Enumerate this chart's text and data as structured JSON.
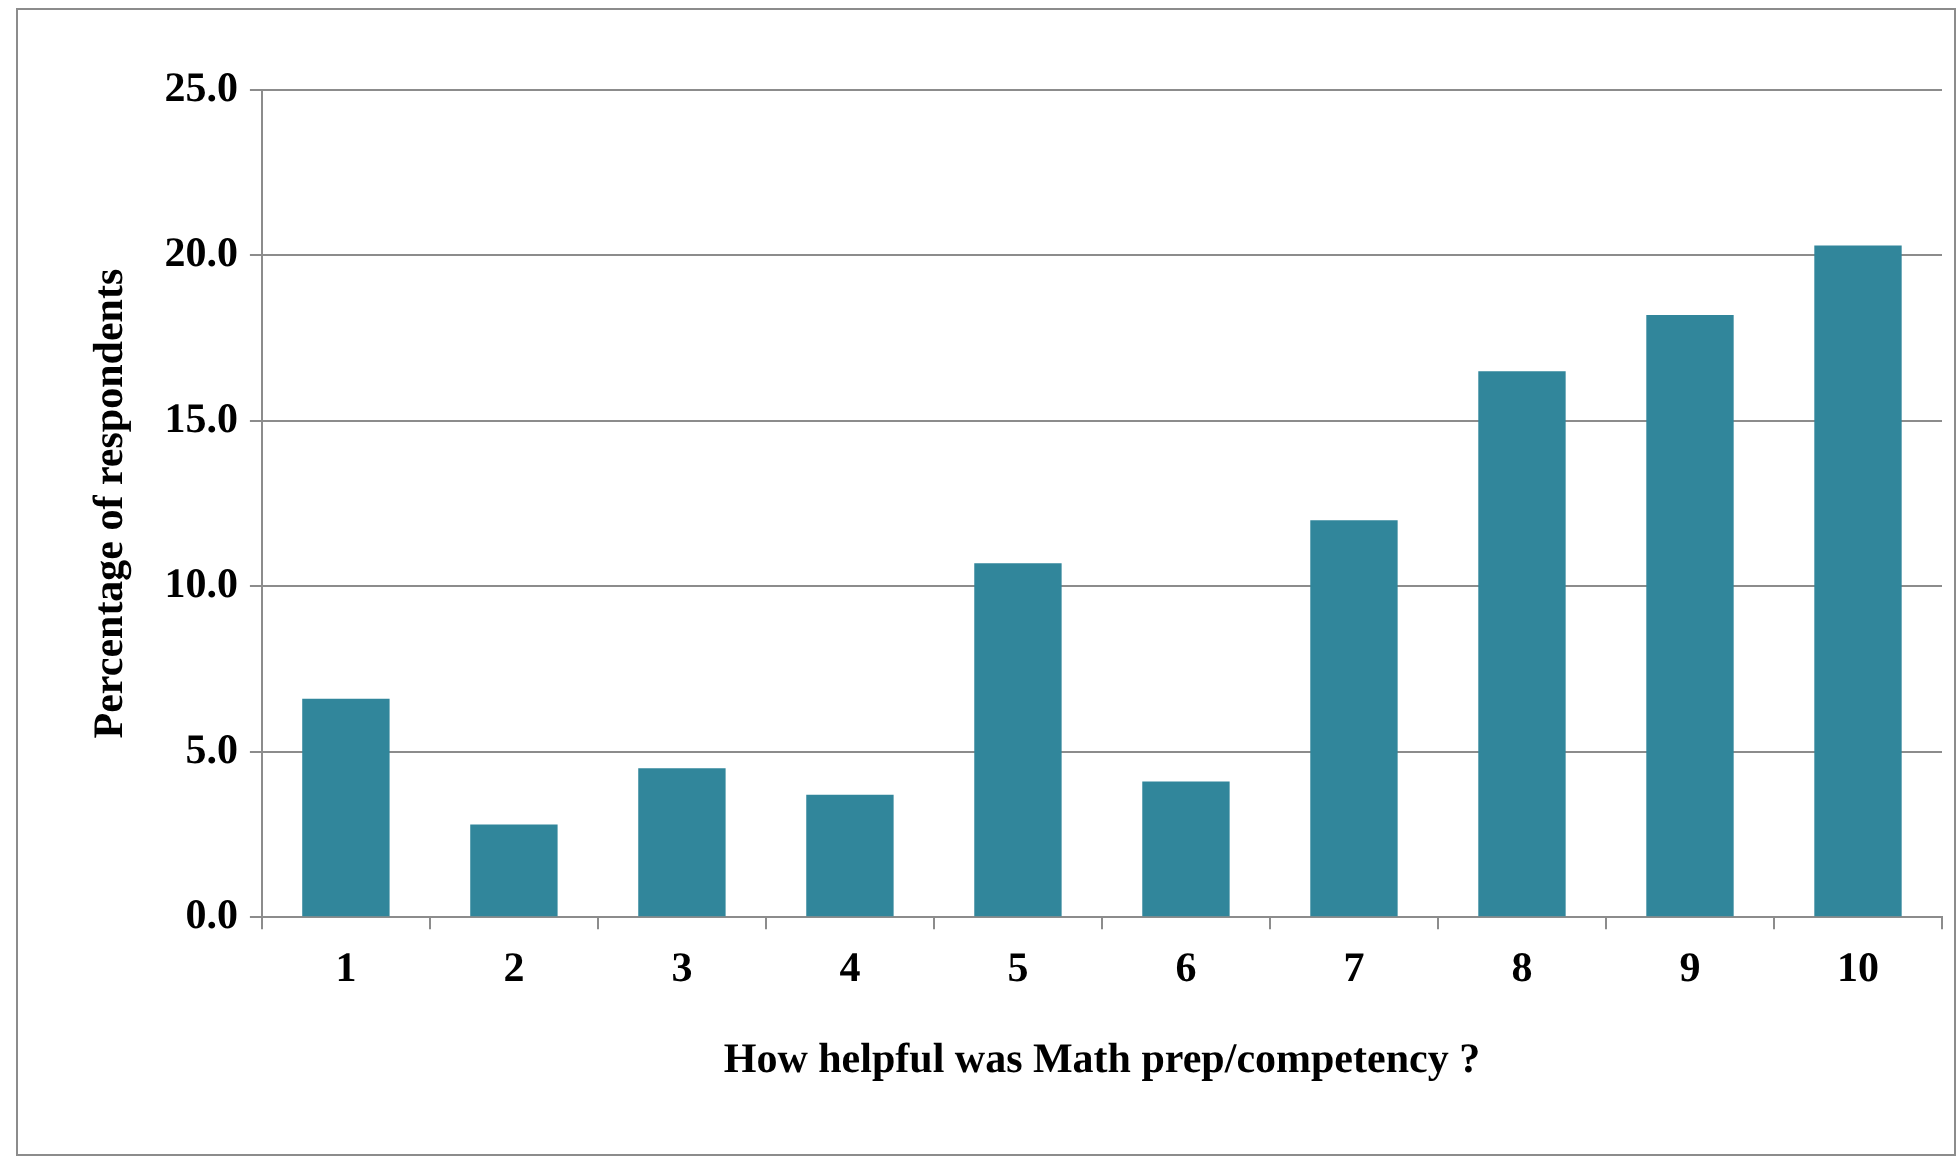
{
  "chart_data": {
    "type": "bar",
    "xlabel": "How helpful was Math prep/competency ?",
    "ylabel": "Percentage of respondents",
    "categories": [
      "1",
      "2",
      "3",
      "4",
      "5",
      "6",
      "7",
      "8",
      "9",
      "10"
    ],
    "values": [
      6.6,
      2.8,
      4.5,
      3.7,
      10.7,
      4.1,
      12.0,
      16.5,
      18.2,
      20.3
    ],
    "color": "#31869b",
    "ylim": [
      0,
      25
    ],
    "yticks": [
      {
        "value": 0,
        "label": "0.0"
      },
      {
        "value": 5,
        "label": "5.0"
      },
      {
        "value": 10,
        "label": "10.0"
      },
      {
        "value": 15,
        "label": "15.0"
      },
      {
        "value": 20,
        "label": "20.0"
      },
      {
        "value": 25,
        "label": "25.0"
      }
    ],
    "grid": "y",
    "legend": false
  }
}
